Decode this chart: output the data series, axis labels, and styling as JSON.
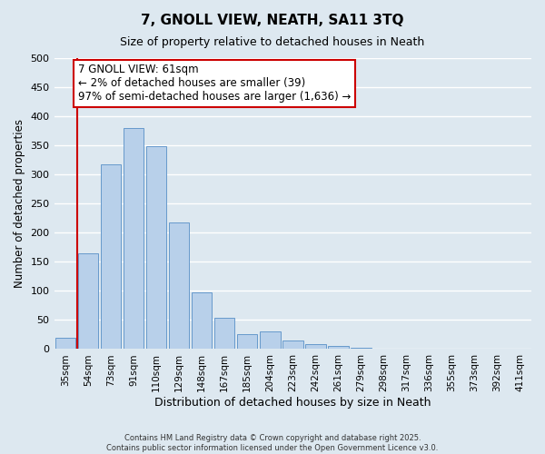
{
  "title": "7, GNOLL VIEW, NEATH, SA11 3TQ",
  "subtitle": "Size of property relative to detached houses in Neath",
  "xlabel": "Distribution of detached houses by size in Neath",
  "ylabel": "Number of detached properties",
  "bar_labels": [
    "35sqm",
    "54sqm",
    "73sqm",
    "91sqm",
    "110sqm",
    "129sqm",
    "148sqm",
    "167sqm",
    "185sqm",
    "204sqm",
    "223sqm",
    "242sqm",
    "261sqm",
    "279sqm",
    "298sqm",
    "317sqm",
    "336sqm",
    "355sqm",
    "373sqm",
    "392sqm",
    "411sqm"
  ],
  "bar_values": [
    20,
    165,
    318,
    380,
    348,
    217,
    97,
    53,
    25,
    30,
    14,
    8,
    5,
    2,
    1,
    0,
    0,
    0,
    0,
    0,
    0
  ],
  "bar_color": "#b8d0ea",
  "bar_edge_color": "#6699cc",
  "bg_color": "#dde8f0",
  "grid_color": "#ffffff",
  "vline_color": "#cc0000",
  "annotation_text_line1": "7 GNOLL VIEW: 61sqm",
  "annotation_text_line2": "← 2% of detached houses are smaller (39)",
  "annotation_text_line3": "97% of semi-detached houses are larger (1,636) →",
  "annotation_box_color": "#ffffff",
  "annotation_box_edge": "#cc0000",
  "ylim": [
    0,
    500
  ],
  "yticks": [
    0,
    50,
    100,
    150,
    200,
    250,
    300,
    350,
    400,
    450,
    500
  ],
  "footer_line1": "Contains HM Land Registry data © Crown copyright and database right 2025.",
  "footer_line2": "Contains public sector information licensed under the Open Government Licence v3.0."
}
